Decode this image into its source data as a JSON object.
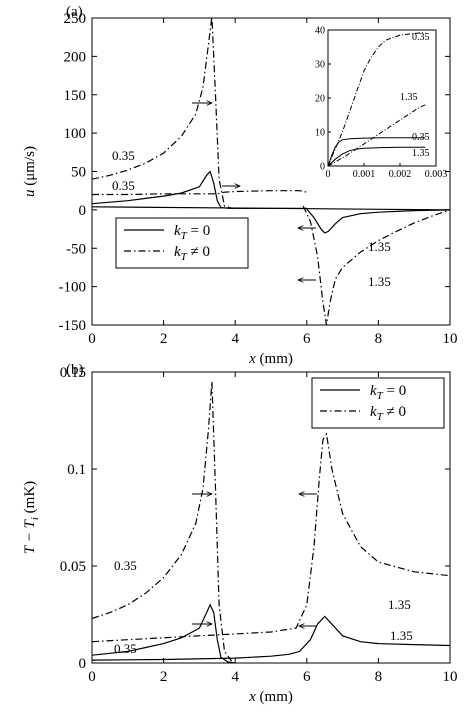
{
  "chart_data": [
    {
      "panel_label": "(a)",
      "type": "line",
      "xlabel_var": "x",
      "xlabel_unit": "(mm)",
      "ylabel_var": "u",
      "ylabel_unit": "(μm/s)",
      "xlim": [
        0,
        10
      ],
      "ylim": [
        -150,
        250
      ],
      "xticks": [
        0,
        2,
        4,
        6,
        8,
        10
      ],
      "yticks": [
        -150,
        -100,
        -50,
        0,
        50,
        100,
        150,
        200,
        250
      ],
      "legend_position": "lower-left",
      "legend": [
        "k_T = 0",
        "k_T ≠ 0"
      ],
      "series": [
        {
          "name": "k_T ≠ 0",
          "label": "0.35",
          "style": "dash-dot",
          "x": [
            0,
            0.5,
            1,
            1.5,
            2,
            2.5,
            2.9,
            3.1,
            3.25,
            3.35,
            3.45,
            3.55,
            3.7,
            3.9,
            4.5
          ],
          "y": [
            40,
            45,
            52,
            61,
            74,
            96,
            125,
            160,
            215,
            252,
            150,
            40,
            5,
            2,
            2
          ]
        },
        {
          "name": "k_T ≠ 0",
          "label": "0.35",
          "style": "dash-dot",
          "x": [
            0,
            1,
            2,
            3,
            3.2,
            3.5,
            3.7,
            4,
            5,
            5.8,
            6
          ],
          "y": [
            20,
            20,
            21,
            21,
            21,
            21,
            23,
            24,
            25,
            25,
            23
          ]
        },
        {
          "name": "k_T ≠ 0",
          "label": "1.35",
          "style": "dash-dot",
          "x": [
            5.9,
            6.1,
            6.3,
            6.45,
            6.55,
            6.65,
            6.8,
            7,
            7.5,
            8,
            8.5,
            9,
            9.5,
            10
          ],
          "y": [
            5,
            -15,
            -60,
            -120,
            -150,
            -120,
            -90,
            -75,
            -55,
            -40,
            -28,
            -17,
            -8,
            0
          ]
        },
        {
          "name": "k_T = 0",
          "label": "0.35",
          "style": "solid",
          "x": [
            0,
            0.5,
            1,
            1.5,
            2,
            2.5,
            3,
            3.2,
            3.3,
            3.4,
            3.5,
            3.6,
            3.8,
            4.2,
            5,
            6
          ],
          "y": [
            8,
            10,
            12,
            15,
            18,
            22,
            30,
            45,
            50,
            35,
            12,
            3,
            2,
            2,
            2,
            2
          ]
        },
        {
          "name": "k_T = 0",
          "label": "1.35",
          "style": "solid",
          "x": [
            6,
            6.2,
            6.4,
            6.5,
            6.6,
            6.8,
            7,
            7.5,
            8,
            9,
            10
          ],
          "y": [
            1,
            -10,
            -25,
            -30,
            -28,
            -18,
            -10,
            -5,
            -3,
            -1,
            0
          ]
        },
        {
          "name": "k_T = 0",
          "label": "",
          "style": "solid",
          "x": [
            0,
            10
          ],
          "y": [
            4,
            0
          ]
        }
      ],
      "annotations": [
        "0.35",
        "0.35",
        "1.35",
        "1.35"
      ],
      "inset": {
        "xlim": [
          0,
          0.003
        ],
        "ylim": [
          0,
          40
        ],
        "xticks": [
          "0",
          "0.001",
          "0.002",
          "0.003"
        ],
        "yticks": [
          0,
          10,
          20,
          30,
          40
        ],
        "labels": [
          "0.35",
          "1.35",
          "0.35",
          "1.35"
        ],
        "series": [
          {
            "style": "dash-dot",
            "label": "0.35",
            "x": [
              0,
              0.0002,
              0.0004,
              0.0006,
              0.0008,
              0.001,
              0.0012,
              0.0014,
              0.0016,
              0.002,
              0.0024,
              0.0027
            ],
            "y": [
              0,
              5,
              10,
              16,
              22,
              28,
              32,
              35,
              37,
              38.5,
              39,
              39.2
            ]
          },
          {
            "style": "dash-dot",
            "label": "1.35",
            "x": [
              0,
              0.0005,
              0.001,
              0.0015,
              0.002,
              0.0025,
              0.0027
            ],
            "y": [
              0,
              3,
              6.5,
              10,
              13.5,
              17,
              18
            ]
          },
          {
            "style": "solid",
            "label": "0.35",
            "x": [
              0,
              0.0001,
              0.0002,
              0.0003,
              0.0004,
              0.0006,
              0.001,
              0.0015,
              0.002,
              0.0027
            ],
            "y": [
              0,
              3,
              5.5,
              7,
              7.7,
              8,
              8.2,
              8.3,
              8.3,
              8.3
            ]
          },
          {
            "style": "solid",
            "label": "1.35",
            "x": [
              0,
              0.0002,
              0.0004,
              0.0006,
              0.0008,
              0.001,
              0.0015,
              0.002,
              0.0027
            ],
            "y": [
              0,
              2,
              3.5,
              4.5,
              5,
              5.2,
              5.4,
              5.5,
              5.5
            ]
          }
        ]
      }
    },
    {
      "panel_label": "(b)",
      "type": "line",
      "xlabel_var": "x",
      "xlabel_unit": "(mm)",
      "ylabel_var": "T − T",
      "ylabel_sub": "i",
      "ylabel_unit": "(mK)",
      "xlim": [
        0,
        10
      ],
      "ylim": [
        0,
        0.15
      ],
      "xticks": [
        0,
        2,
        4,
        6,
        8,
        10
      ],
      "yticks": [
        0,
        0.05,
        0.1,
        0.15
      ],
      "ytick_labels": [
        "0",
        "0.05",
        "0.1",
        "0.15"
      ],
      "legend_position": "top-right",
      "legend": [
        "k_T = 0",
        "k_T ≠ 0"
      ],
      "series": [
        {
          "name": "k_T ≠ 0",
          "label": "0.35",
          "style": "dash-dot",
          "x": [
            0,
            0.5,
            1,
            1.5,
            2,
            2.5,
            2.9,
            3.1,
            3.25,
            3.35,
            3.45,
            3.55,
            3.7,
            3.9
          ],
          "y": [
            0.023,
            0.026,
            0.03,
            0.036,
            0.044,
            0.056,
            0.072,
            0.09,
            0.12,
            0.145,
            0.09,
            0.03,
            0.006,
            0.001
          ]
        },
        {
          "name": "k_T ≠ 0",
          "label": "1.35",
          "style": "dash-dot",
          "x": [
            0,
            1,
            2,
            3,
            4,
            5,
            5.7,
            6,
            6.2,
            6.35,
            6.45,
            6.55,
            6.7,
            7,
            7.5,
            8,
            9,
            10
          ],
          "y": [
            0.011,
            0.012,
            0.013,
            0.014,
            0.015,
            0.016,
            0.018,
            0.03,
            0.06,
            0.095,
            0.115,
            0.118,
            0.1,
            0.077,
            0.06,
            0.052,
            0.047,
            0.045
          ]
        },
        {
          "name": "k_T = 0",
          "label": "0.35",
          "style": "solid",
          "x": [
            0,
            0.5,
            1,
            1.5,
            2,
            2.5,
            3,
            3.2,
            3.3,
            3.4,
            3.5,
            3.6,
            3.8,
            4
          ],
          "y": [
            0.004,
            0.005,
            0.006,
            0.008,
            0.01,
            0.013,
            0.018,
            0.026,
            0.03,
            0.026,
            0.012,
            0.003,
            0.0005,
            0
          ]
        },
        {
          "name": "k_T = 0",
          "label": "1.35",
          "style": "solid",
          "x": [
            0,
            2,
            4,
            5,
            5.5,
            5.8,
            6.1,
            6.3,
            6.5,
            6.7,
            7,
            7.5,
            8,
            9,
            10
          ],
          "y": [
            0.0015,
            0.0018,
            0.0025,
            0.0035,
            0.0045,
            0.006,
            0.012,
            0.02,
            0.024,
            0.02,
            0.014,
            0.011,
            0.01,
            0.0095,
            0.009
          ]
        }
      ],
      "annotations": [
        "0.35",
        "0.35",
        "1.35",
        "1.35"
      ]
    }
  ]
}
